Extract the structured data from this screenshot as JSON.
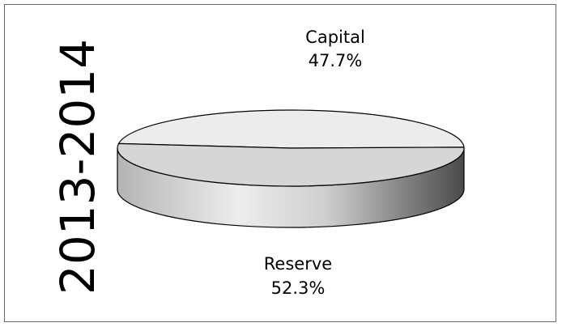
{
  "chart_data": {
    "type": "pie",
    "title": "2013-2014",
    "slices": [
      {
        "label": "Capital",
        "value": 47.7,
        "value_text": "47.7%",
        "color": "#ececec"
      },
      {
        "label": "Reserve",
        "value": 52.3,
        "value_text": "52.3%",
        "color": "#d6d6d6"
      }
    ],
    "style": "3d",
    "legend": "none"
  }
}
